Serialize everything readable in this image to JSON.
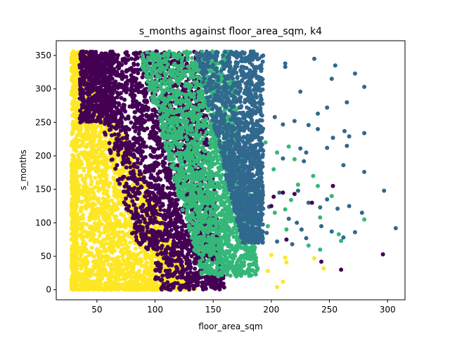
{
  "chart_data": {
    "type": "scatter",
    "title": "s_months against floor_area_sqm, k4",
    "xlabel": "floor_area_sqm",
    "ylabel": "s_months",
    "xlim": [
      15,
      315
    ],
    "ylim": [
      -15,
      372
    ],
    "xticks": [
      50,
      100,
      150,
      200,
      250,
      300
    ],
    "yticks": [
      0,
      50,
      100,
      150,
      200,
      250,
      300,
      350
    ],
    "grid": false,
    "legend": "none",
    "colors": {
      "cluster_0": "#440154",
      "cluster_1": "#31688e",
      "cluster_2": "#35b779",
      "cluster_3": "#fde725"
    },
    "dense_regions": [
      {
        "cluster": "cluster_3",
        "x_range": [
          28,
          130
        ],
        "y_range": [
          0,
          356
        ],
        "note_shape": "wedge"
      },
      {
        "cluster": "cluster_0",
        "x_range": [
          35,
          165
        ],
        "y_range": [
          0,
          356
        ]
      },
      {
        "cluster": "cluster_2",
        "x_range": [
          85,
          193
        ],
        "y_range": [
          20,
          356
        ]
      },
      {
        "cluster": "cluster_1",
        "x_range": [
          130,
          193
        ],
        "y_range": [
          70,
          356
        ]
      }
    ],
    "series": [
      {
        "cluster": "cluster_1",
        "points": [
          [
            237,
            345
          ],
          [
            255,
            335
          ],
          [
            272,
            323
          ],
          [
            252,
            315
          ],
          [
            280,
            303
          ],
          [
            212,
            338
          ],
          [
            212,
            333
          ],
          [
            225,
            296
          ],
          [
            248,
            272
          ],
          [
            265,
            280
          ],
          [
            240,
            263
          ],
          [
            203,
            258
          ],
          [
            210,
            247
          ],
          [
            220,
            252
          ],
          [
            232,
            246
          ],
          [
            240,
            240
          ],
          [
            253,
            227
          ],
          [
            263,
            237
          ],
          [
            267,
            229
          ],
          [
            265,
            215
          ],
          [
            280,
            234
          ],
          [
            225,
            211
          ],
          [
            230,
            205
          ],
          [
            210,
            196
          ],
          [
            228,
            192
          ],
          [
            248,
            212
          ],
          [
            262,
            186
          ],
          [
            280,
            176
          ],
          [
            207,
            145
          ],
          [
            223,
            148
          ],
          [
            297,
            148
          ],
          [
            232,
            130
          ],
          [
            248,
            135
          ],
          [
            267,
            125
          ],
          [
            278,
            115
          ],
          [
            242,
            123
          ],
          [
            215,
            106
          ],
          [
            222,
            100
          ],
          [
            243,
            95
          ],
          [
            252,
            87
          ],
          [
            262,
            78
          ],
          [
            307,
            92
          ],
          [
            205,
            72
          ],
          [
            218,
            68
          ],
          [
            226,
            90
          ],
          [
            198,
            124
          ],
          [
            196,
            85
          ],
          [
            230,
            77
          ],
          [
            257,
            121
          ],
          [
            272,
            86
          ]
        ]
      },
      {
        "cluster": "cluster_2",
        "points": [
          [
            215,
            214
          ],
          [
            220,
            195
          ],
          [
            205,
            205
          ],
          [
            223,
            157
          ],
          [
            240,
            155
          ],
          [
            217,
            134
          ],
          [
            212,
            120
          ],
          [
            242,
            108
          ],
          [
            280,
            105
          ],
          [
            260,
            73
          ],
          [
            242,
            60
          ],
          [
            258,
            83
          ],
          [
            197,
            95
          ],
          [
            195,
            220
          ],
          [
            202,
            180
          ],
          [
            213,
            90
          ],
          [
            236,
            170
          ],
          [
            252,
            140
          ],
          [
            203,
            115
          ],
          [
            232,
            66
          ]
        ]
      },
      {
        "cluster": "cluster_0",
        "points": [
          [
            210,
            145
          ],
          [
            220,
            143
          ],
          [
            253,
            155
          ],
          [
            235,
            130
          ],
          [
            296,
            53
          ],
          [
            260,
            30
          ],
          [
            243,
            42
          ],
          [
            200,
            125
          ],
          [
            202,
            139
          ],
          [
            213,
            75
          ]
        ]
      },
      {
        "cluster": "cluster_3",
        "points": [
          [
            200,
            52
          ],
          [
            212,
            48
          ],
          [
            237,
            47
          ],
          [
            245,
            32
          ],
          [
            197,
            28
          ],
          [
            210,
            12
          ],
          [
            205,
            4
          ],
          [
            213,
            41
          ]
        ]
      }
    ]
  }
}
